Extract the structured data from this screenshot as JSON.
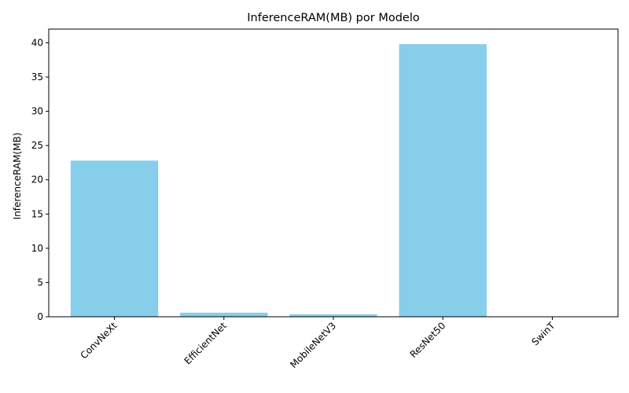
{
  "chart_data": {
    "type": "bar",
    "title": "InferenceRAM(MB) por Modelo",
    "xlabel": "",
    "ylabel": "InferenceRAM(MB)",
    "categories": [
      "ConvNeXt",
      "EfficientNet",
      "MobileNetV3",
      "ResNet50",
      "SwinT"
    ],
    "values": [
      22.8,
      0.6,
      0.35,
      39.8,
      0.0
    ],
    "ylim": [
      0,
      42
    ],
    "yticks": [
      0,
      5,
      10,
      15,
      20,
      25,
      30,
      35,
      40
    ],
    "bar_color": "#87ceeb",
    "grid": false,
    "legend": "none"
  }
}
